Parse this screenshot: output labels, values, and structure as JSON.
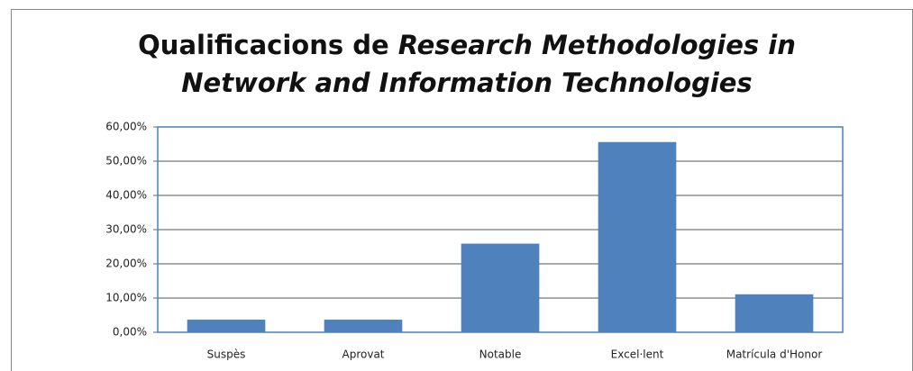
{
  "chart_data": {
    "type": "bar",
    "title": [
      [
        {
          "text": "Qualificacions de ",
          "italic": false
        },
        {
          "text": "Research Methodologies in",
          "italic": true
        }
      ],
      [
        {
          "text": "Network and Information Technologies",
          "italic": true
        }
      ]
    ],
    "categories": [
      "Suspès",
      "Aprovat",
      "Notable",
      "Excel·lent",
      "Matrícula d'Honor"
    ],
    "values": [
      3.7,
      3.7,
      25.9,
      55.6,
      11.1
    ],
    "color": "#4f81bd",
    "ylim": [
      0,
      60
    ],
    "yticks": [
      {
        "value": 0,
        "label": "0,00%"
      },
      {
        "value": 10,
        "label": "10,00%"
      },
      {
        "value": 20,
        "label": "20,00%"
      },
      {
        "value": 30,
        "label": "30,00%"
      },
      {
        "value": 40,
        "label": "40,00%"
      },
      {
        "value": 50,
        "label": "50,00%"
      },
      {
        "value": 60,
        "label": "60,00%"
      }
    ],
    "grid": true
  }
}
